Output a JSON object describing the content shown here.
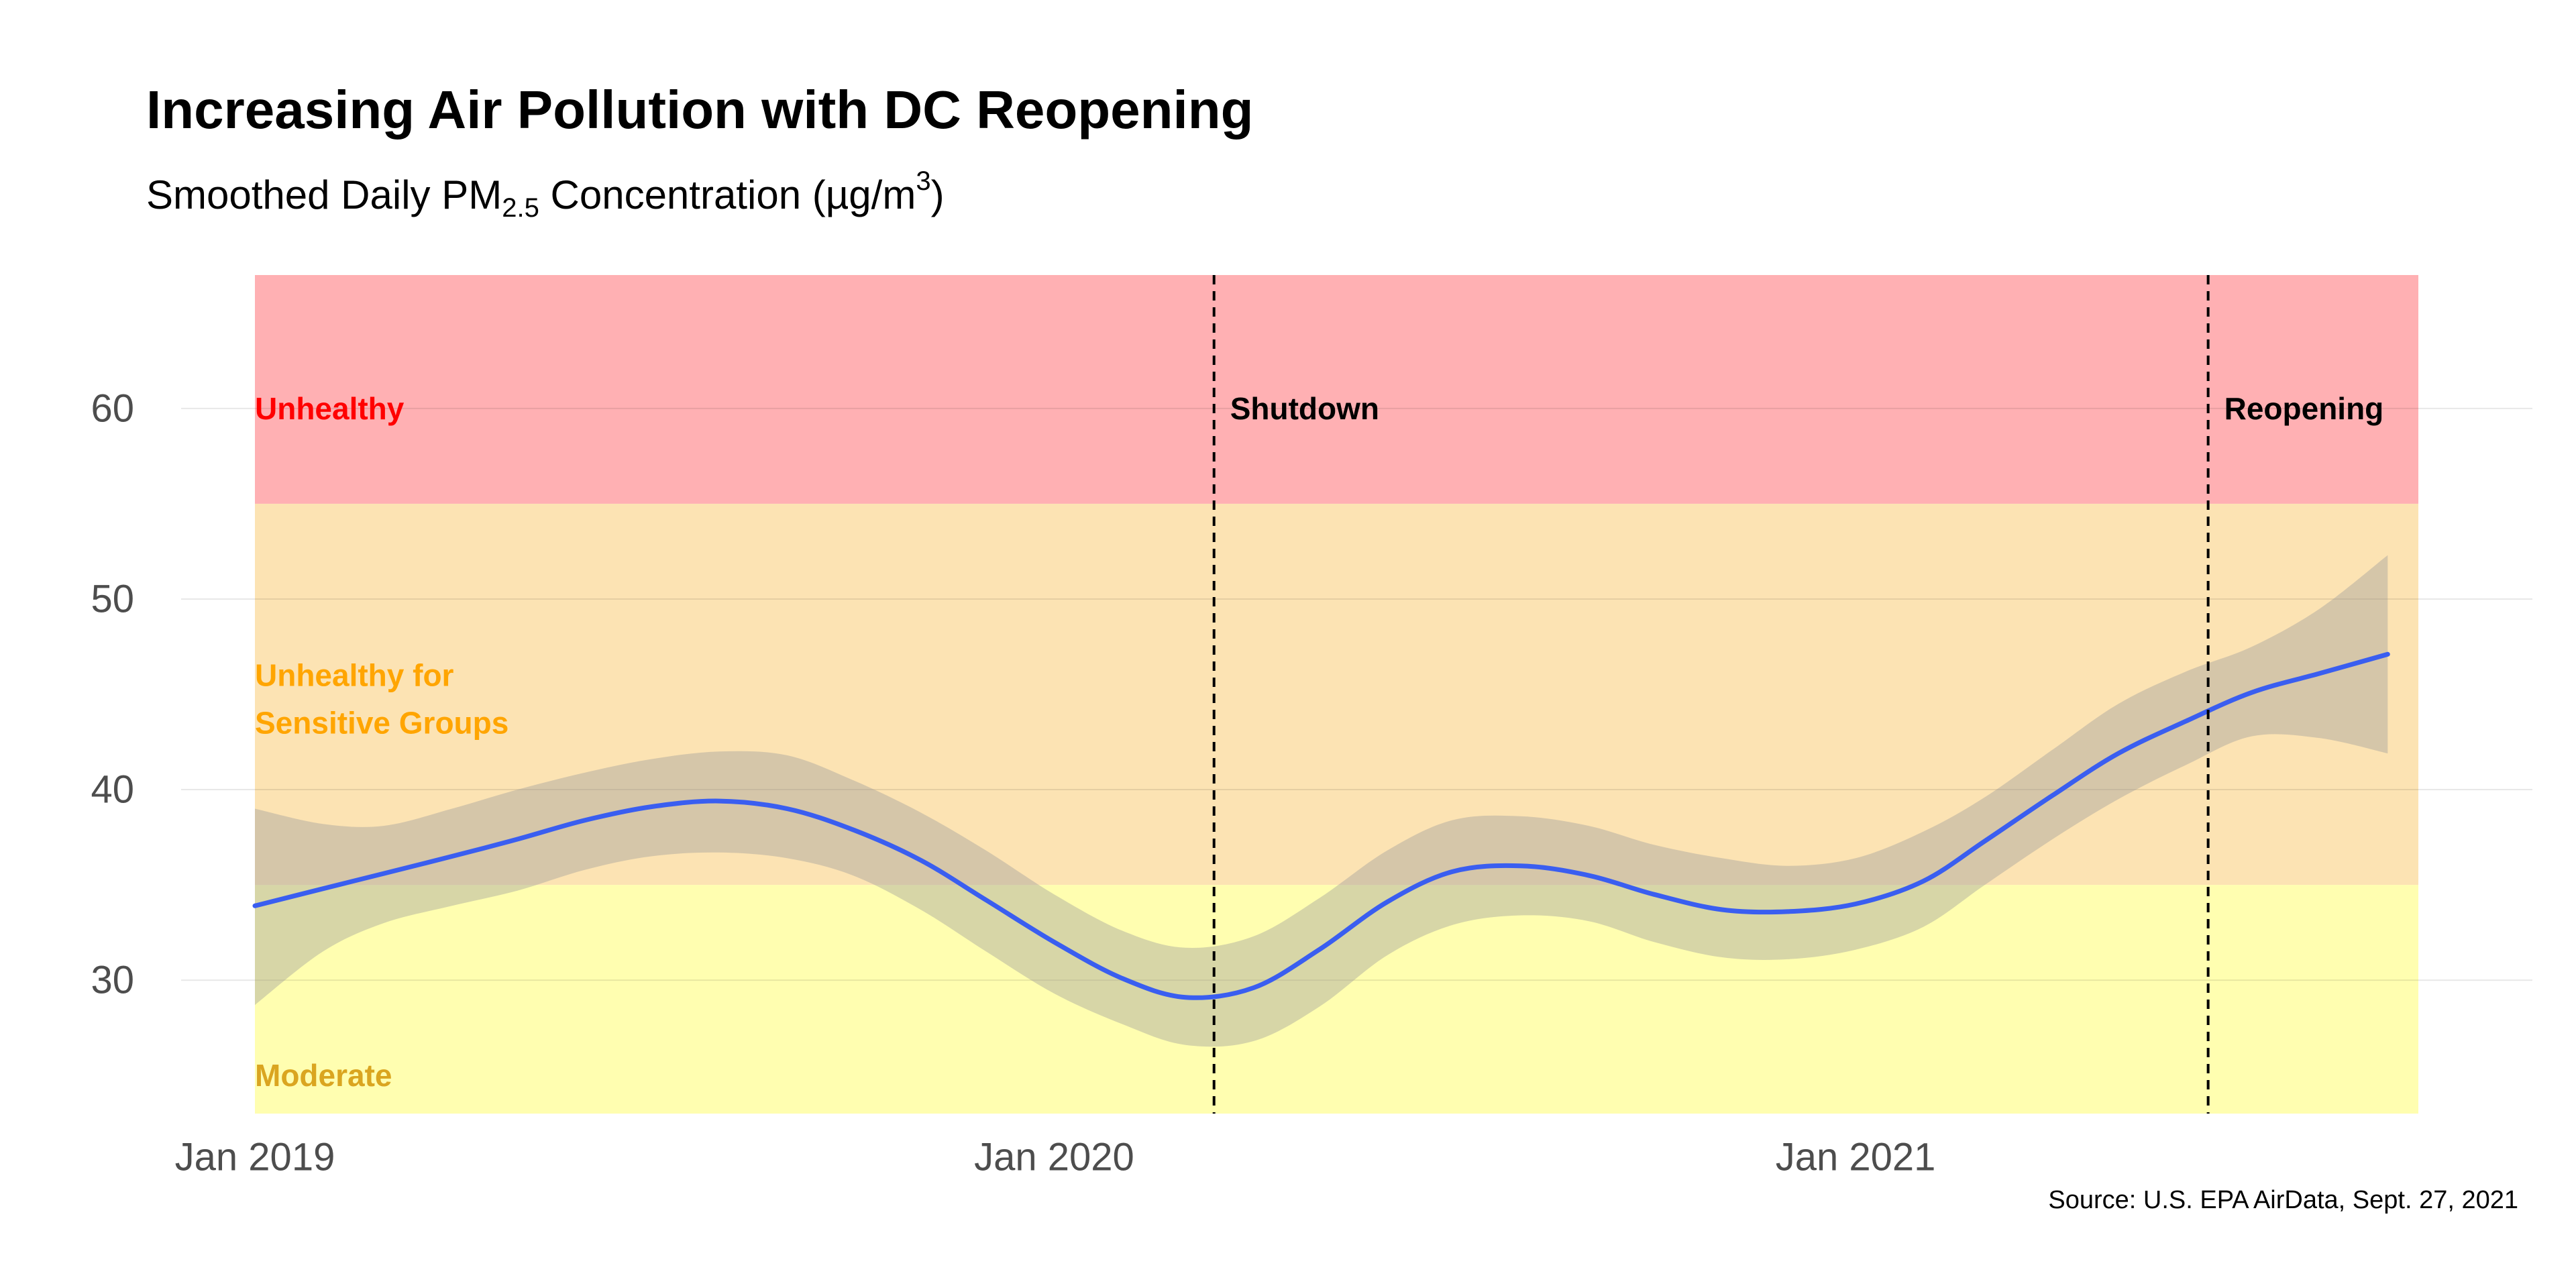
{
  "header": {
    "title": "Increasing Air Pollution with DC Reopening",
    "subtitle_prefix": "Smoothed Daily PM",
    "subtitle_sub": "2.5",
    "subtitle_mid": " Concentration (µg",
    "subtitle_slash": "/",
    "subtitle_unit": "m",
    "subtitle_sup": "3",
    "subtitle_suffix": ")"
  },
  "caption": "Source: U.S. EPA AirData, Sept. 27, 2021",
  "chart_data": {
    "type": "line",
    "title": "Increasing Air Pollution with DC Reopening",
    "subtitle": "Smoothed Daily PM2.5 Concentration (µg/m3)",
    "xlabel": "",
    "ylabel": "",
    "xlim": [
      "2019-01-01",
      "2021-09-15"
    ],
    "ylim": [
      23,
      67
    ],
    "x_ticks": [
      {
        "date": "2019-01-01",
        "label": "Jan 2019"
      },
      {
        "date": "2020-01-01",
        "label": "Jan 2020"
      },
      {
        "date": "2021-01-01",
        "label": "Jan 2021"
      }
    ],
    "y_ticks": [
      30,
      40,
      50,
      60
    ],
    "grid": true,
    "bands": [
      {
        "label": "Moderate",
        "from": 23,
        "to": 35,
        "fill": "#fffeb0",
        "label_color": "#daa520",
        "label_at": [
          25,
          26
        ]
      },
      {
        "label": "Unhealthy for Sensitive Groups",
        "label_lines": [
          "Unhealthy for",
          "Sensitive Groups"
        ],
        "from": 35,
        "to": 55,
        "fill": "#fce3b3",
        "label_color": "#ffa500",
        "label_at": [
          46,
          43.5
        ]
      },
      {
        "label": "Unhealthy",
        "from": 55,
        "to": 67,
        "fill": "#ffb0b3",
        "label_color": "#ff0000",
        "label_at": [
          60
        ]
      }
    ],
    "events": [
      {
        "label": "Shutdown",
        "date": "2020-03-14",
        "label_y": 60
      },
      {
        "label": "Reopening",
        "date": "2021-06-11",
        "label_y": 60
      }
    ],
    "series": [
      {
        "line_color": "#3a5ef0",
        "ribbon_color": "#9b9b9b",
        "points": [
          {
            "x": "2019-01-01",
            "y": 33.9,
            "lo": 28.7,
            "hi": 39.0
          },
          {
            "x": "2019-02-01",
            "y": 34.8,
            "lo": 31.5,
            "hi": 38.2
          },
          {
            "x": "2019-03-01",
            "y": 35.6,
            "lo": 33.0,
            "hi": 38.1
          },
          {
            "x": "2019-04-01",
            "y": 36.5,
            "lo": 33.9,
            "hi": 39.0
          },
          {
            "x": "2019-05-01",
            "y": 37.4,
            "lo": 34.7,
            "hi": 40.0
          },
          {
            "x": "2019-06-01",
            "y": 38.4,
            "lo": 35.8,
            "hi": 40.9
          },
          {
            "x": "2019-07-01",
            "y": 39.1,
            "lo": 36.5,
            "hi": 41.6
          },
          {
            "x": "2019-08-01",
            "y": 39.4,
            "lo": 36.7,
            "hi": 42.0
          },
          {
            "x": "2019-09-01",
            "y": 39.0,
            "lo": 36.4,
            "hi": 41.8
          },
          {
            "x": "2019-10-01",
            "y": 37.9,
            "lo": 35.5,
            "hi": 40.5
          },
          {
            "x": "2019-11-01",
            "y": 36.3,
            "lo": 33.7,
            "hi": 38.8
          },
          {
            "x": "2019-12-01",
            "y": 34.2,
            "lo": 31.5,
            "hi": 36.8
          },
          {
            "x": "2020-01-01",
            "y": 32.0,
            "lo": 29.3,
            "hi": 34.5
          },
          {
            "x": "2020-02-01",
            "y": 30.1,
            "lo": 27.7,
            "hi": 32.6
          },
          {
            "x": "2020-03-01",
            "y": 29.1,
            "lo": 26.6,
            "hi": 31.7
          },
          {
            "x": "2020-04-01",
            "y": 29.6,
            "lo": 26.8,
            "hi": 32.3
          },
          {
            "x": "2020-05-01",
            "y": 31.6,
            "lo": 28.6,
            "hi": 34.3
          },
          {
            "x": "2020-06-01",
            "y": 34.1,
            "lo": 31.3,
            "hi": 36.8
          },
          {
            "x": "2020-07-01",
            "y": 35.7,
            "lo": 32.9,
            "hi": 38.4
          },
          {
            "x": "2020-08-01",
            "y": 36.0,
            "lo": 33.4,
            "hi": 38.6
          },
          {
            "x": "2020-09-01",
            "y": 35.5,
            "lo": 33.1,
            "hi": 38.1
          },
          {
            "x": "2020-10-01",
            "y": 34.5,
            "lo": 32.0,
            "hi": 37.1
          },
          {
            "x": "2020-11-01",
            "y": 33.7,
            "lo": 31.2,
            "hi": 36.4
          },
          {
            "x": "2020-12-01",
            "y": 33.6,
            "lo": 31.1,
            "hi": 36.0
          },
          {
            "x": "2021-01-01",
            "y": 34.0,
            "lo": 31.6,
            "hi": 36.4
          },
          {
            "x": "2021-02-01",
            "y": 35.2,
            "lo": 32.8,
            "hi": 37.8
          },
          {
            "x": "2021-03-01",
            "y": 37.3,
            "lo": 35.0,
            "hi": 39.6
          },
          {
            "x": "2021-04-01",
            "y": 39.7,
            "lo": 37.4,
            "hi": 42.1
          },
          {
            "x": "2021-05-01",
            "y": 41.9,
            "lo": 39.5,
            "hi": 44.5
          },
          {
            "x": "2021-06-01",
            "y": 43.6,
            "lo": 41.3,
            "hi": 46.2
          },
          {
            "x": "2021-07-01",
            "y": 45.1,
            "lo": 42.8,
            "hi": 47.5
          },
          {
            "x": "2021-08-01",
            "y": 46.1,
            "lo": 42.7,
            "hi": 49.5
          },
          {
            "x": "2021-09-01",
            "y": 47.1,
            "lo": 41.9,
            "hi": 52.3
          }
        ]
      }
    ]
  }
}
